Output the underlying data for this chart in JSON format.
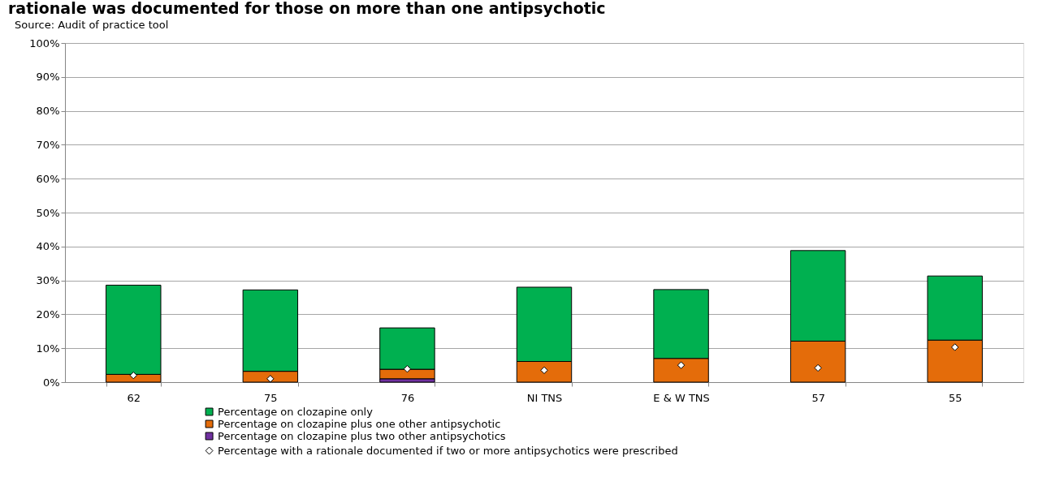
{
  "chart_data": {
    "type": "bar",
    "title": "rationale was documented for those on more than one antipsychotic",
    "annotations": [
      "Source: Audit of practice tool"
    ],
    "categories": [
      "62",
      "75",
      "76",
      "NI TNS",
      "E & W TNS",
      "57",
      "55"
    ],
    "stacked": true,
    "ylim": [
      0,
      100
    ],
    "yticks": [
      {
        "value": 0,
        "label": "0%"
      },
      {
        "value": 10,
        "label": "10%"
      },
      {
        "value": 20,
        "label": "20%"
      },
      {
        "value": 30,
        "label": "30%"
      },
      {
        "value": 40,
        "label": "40%"
      },
      {
        "value": 50,
        "label": "50%"
      },
      {
        "value": 60,
        "label": "60%"
      },
      {
        "value": 70,
        "label": "70%"
      },
      {
        "value": 80,
        "label": "80%"
      },
      {
        "value": 90,
        "label": "90%"
      },
      {
        "value": 100,
        "label": "100%"
      }
    ],
    "grid": "y",
    "legend": "bottom",
    "series": [
      {
        "name": "Percentage on clozapine plus two other antipsychotics",
        "color": "#7030a0",
        "values": [
          null,
          null,
          1.0,
          null,
          null,
          null,
          null
        ]
      },
      {
        "name": "Percentage on clozapine plus one other antipsychotic",
        "color": "#e46c0a",
        "values": [
          2.3,
          3.2,
          2.8,
          6.1,
          7.0,
          12.1,
          12.4
        ]
      },
      {
        "name": "Percentage on clozapine only",
        "color": "#00b050",
        "values": [
          26.3,
          24.0,
          12.2,
          21.9,
          20.3,
          26.7,
          18.9
        ]
      },
      {
        "name": "Percentage with a rationale documented if two or more antipsychotics were prescribed",
        "type": "scatter",
        "marker": "diamond",
        "color": "#ffffff",
        "x": [
          "62",
          "75",
          "76",
          "NI TNS",
          "E & W TNS",
          "57",
          "55"
        ],
        "values": [
          2.0,
          1.0,
          3.9,
          3.5,
          5.0,
          4.2,
          10.3
        ]
      }
    ]
  }
}
